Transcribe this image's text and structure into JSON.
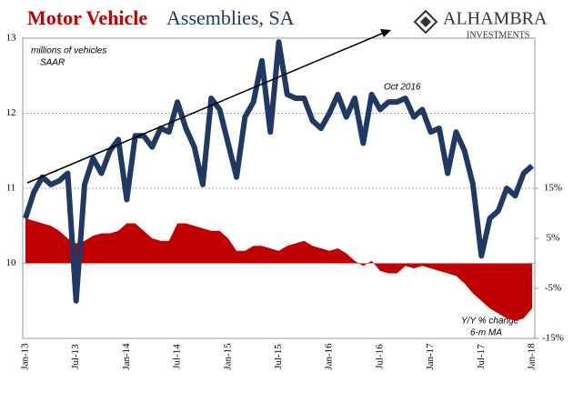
{
  "chart_data": {
    "type": "line",
    "title": "Motor Vehicle",
    "title_rest": "Assemblies, SA",
    "logo": "ALHAMBRA",
    "logo_sub": "INVESTMENTS",
    "annotations": [
      "millions of vehicles",
      "SAAR",
      "Oct 2016",
      "Y/Y % change",
      "6-m MA"
    ],
    "categories": [
      "Jan-13",
      null,
      null,
      null,
      null,
      null,
      "Jul-13",
      null,
      null,
      null,
      null,
      null,
      "Jan-14",
      null,
      null,
      null,
      null,
      null,
      "Jul-14",
      null,
      null,
      null,
      null,
      null,
      "Jan-15",
      null,
      null,
      null,
      null,
      null,
      "Jul-15",
      null,
      null,
      null,
      null,
      null,
      "Jan-16",
      null,
      null,
      null,
      null,
      null,
      "Jul-16",
      null,
      null,
      null,
      null,
      null,
      "Jan-17",
      null,
      null,
      null,
      null,
      null,
      "Jul-17",
      null,
      null,
      null,
      null,
      null,
      "Jan-18"
    ],
    "series": [
      {
        "color": "#1f3864",
        "values": [
          10.6,
          10.95,
          11.15,
          11.05,
          11.1,
          11.2,
          9.5,
          11.05,
          11.4,
          11.2,
          11.5,
          11.65,
          10.85,
          11.7,
          11.7,
          11.55,
          11.8,
          11.75,
          12.15,
          11.8,
          11.55,
          11.05,
          12.2,
          12.05,
          11.6,
          11.15,
          11.95,
          12.15,
          12.7,
          11.75,
          12.95,
          12.25,
          12.2,
          12.2,
          11.9,
          11.8,
          12.0,
          12.25,
          11.95,
          12.2,
          11.6,
          12.25,
          12.05,
          12.15,
          12.15,
          12.2,
          11.95,
          12.05,
          11.75,
          11.8,
          11.2,
          11.75,
          11.5,
          11.05,
          10.1,
          10.6,
          10.7,
          11.0,
          10.9,
          11.2,
          11.3
        ]
      },
      {
        "color": "#c00000",
        "axis": "y2",
        "type": "area",
        "values": [
          9,
          8.5,
          8,
          7.5,
          6.5,
          5,
          4,
          4.5,
          5.5,
          6,
          6,
          6.5,
          8,
          8,
          6.5,
          5,
          4.5,
          4.5,
          8,
          8,
          7.5,
          7,
          6.5,
          6.5,
          5,
          2.5,
          2.5,
          3.5,
          3.5,
          3,
          2.5,
          3.5,
          4,
          4.5,
          3.5,
          3,
          2.5,
          3,
          2,
          0.5,
          -0.5,
          0.5,
          -1.5,
          -2,
          -2,
          -0.5,
          -1,
          -0.5,
          -1,
          -1.5,
          -2,
          -2.5,
          -4,
          -6,
          -7.5,
          -9,
          -10,
          -11,
          -11.5,
          -11,
          -9
        ]
      }
    ],
    "ylim": [
      9,
      13
    ],
    "yticks": [
      10,
      11,
      12,
      13
    ],
    "y2lim": [
      -15,
      45
    ],
    "y2ticks": [
      {
        "value": 15,
        "label": "15%"
      },
      {
        "value": 5,
        "label": "5%"
      },
      {
        "value": -5,
        "label": "-5%"
      },
      {
        "value": -15,
        "label": "-15%"
      }
    ],
    "grid": true
  }
}
